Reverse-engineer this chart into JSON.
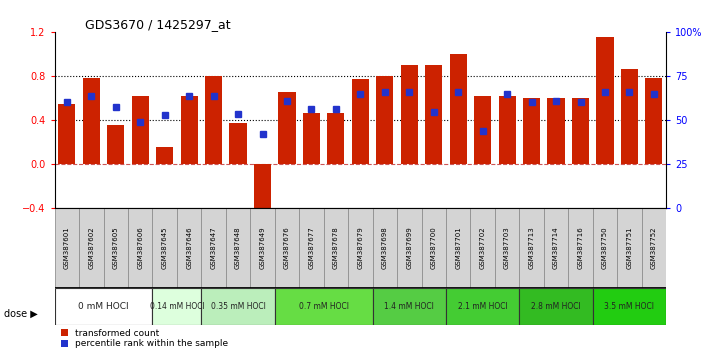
{
  "title": "GDS3670 / 1425297_at",
  "samples": [
    "GSM387601",
    "GSM387602",
    "GSM387605",
    "GSM387606",
    "GSM387645",
    "GSM387646",
    "GSM387647",
    "GSM387648",
    "GSM387649",
    "GSM387676",
    "GSM387677",
    "GSM387678",
    "GSM387679",
    "GSM387698",
    "GSM387699",
    "GSM387700",
    "GSM387701",
    "GSM387702",
    "GSM387703",
    "GSM387713",
    "GSM387714",
    "GSM387716",
    "GSM387750",
    "GSM387751",
    "GSM387752"
  ],
  "bar_values": [
    0.54,
    0.78,
    0.35,
    0.62,
    0.15,
    0.62,
    0.8,
    0.37,
    -0.47,
    0.65,
    0.46,
    0.46,
    0.77,
    0.8,
    0.9,
    0.9,
    1.0,
    0.62,
    0.62,
    0.6,
    0.6,
    0.6,
    1.15,
    0.86,
    0.78
  ],
  "percentile_values": [
    0.56,
    0.62,
    0.52,
    0.38,
    0.44,
    0.62,
    0.62,
    0.45,
    0.27,
    0.57,
    0.5,
    0.5,
    0.63,
    0.65,
    0.65,
    0.47,
    0.65,
    0.3,
    0.63,
    0.56,
    0.57,
    0.56,
    0.65,
    0.65,
    0.63
  ],
  "dose_groups": [
    {
      "label": "0 mM HOCl",
      "start": 0,
      "end": 4,
      "color": "#ffffff"
    },
    {
      "label": "0.14 mM HOCl",
      "start": 4,
      "end": 6,
      "color": "#ddffdd"
    },
    {
      "label": "0.35 mM HOCl",
      "start": 6,
      "end": 9,
      "color": "#bbeeaa"
    },
    {
      "label": "0.7 mM HOCl",
      "start": 9,
      "end": 13,
      "color": "#66dd44"
    },
    {
      "label": "1.4 mM HOCl",
      "start": 13,
      "end": 16,
      "color": "#55cc44"
    },
    {
      "label": "2.1 mM HOCl",
      "start": 16,
      "end": 19,
      "color": "#44cc33"
    },
    {
      "label": "2.8 mM HOCl",
      "start": 19,
      "end": 22,
      "color": "#33bb22"
    },
    {
      "label": "3.5 mM HOCl",
      "start": 22,
      "end": 25,
      "color": "#22cc11"
    }
  ],
  "bar_color": "#cc2200",
  "percentile_color": "#2233cc",
  "ylim": [
    -0.4,
    1.2
  ],
  "right_ylim": [
    0,
    100
  ],
  "right_yticks": [
    0,
    25,
    50,
    75,
    100
  ],
  "right_yticklabels": [
    "0",
    "25",
    "50",
    "75",
    "100%"
  ],
  "left_yticks": [
    -0.4,
    0.0,
    0.4,
    0.8,
    1.2
  ],
  "hlines_y": [
    0.4,
    0.8
  ],
  "background_color": "#ffffff",
  "sample_cell_color": "#d4d4d4",
  "sample_cell_edge_color": "#888888"
}
